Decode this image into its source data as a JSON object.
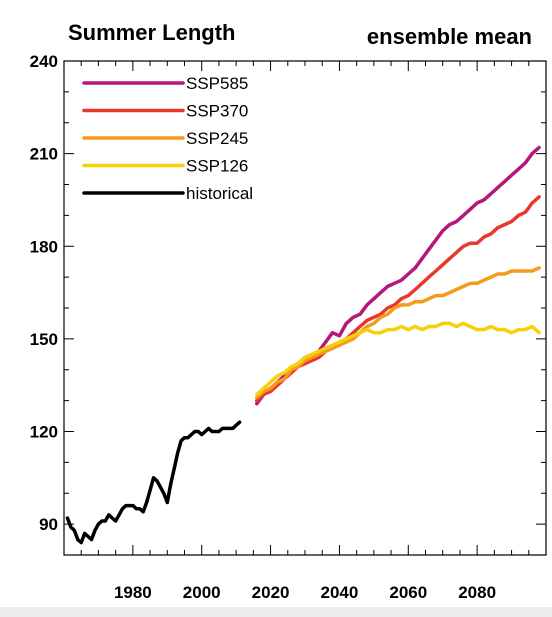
{
  "chart_data": {
    "type": "line",
    "title": "Summer Length",
    "subtitle": "ensemble mean",
    "xlabel": "",
    "ylabel": "",
    "xlim": [
      1960,
      2100
    ],
    "ylim": [
      80,
      240
    ],
    "x_ticks": [
      1980,
      2000,
      2020,
      2040,
      2060,
      2080
    ],
    "y_ticks": [
      90,
      120,
      150,
      180,
      210,
      240
    ],
    "grid": false,
    "legend_position": "top-left",
    "series": [
      {
        "name": "SSP585",
        "color": "#b5177a",
        "x": [
          2016,
          2018,
          2020,
          2022,
          2024,
          2026,
          2028,
          2030,
          2032,
          2034,
          2036,
          2038,
          2040,
          2042,
          2044,
          2046,
          2048,
          2050,
          2052,
          2054,
          2056,
          2058,
          2060,
          2062,
          2064,
          2066,
          2068,
          2070,
          2072,
          2074,
          2076,
          2078,
          2080,
          2082,
          2084,
          2086,
          2088,
          2090,
          2092,
          2094,
          2096,
          2098
        ],
        "y": [
          129,
          132,
          134,
          136,
          138,
          140,
          142,
          144,
          144,
          146,
          149,
          152,
          151,
          155,
          157,
          158,
          161,
          163,
          165,
          167,
          168,
          169,
          171,
          173,
          176,
          179,
          182,
          185,
          187,
          188,
          190,
          192,
          194,
          195,
          197,
          199,
          201,
          203,
          205,
          207,
          210,
          212
        ]
      },
      {
        "name": "SSP370",
        "color": "#e8382c",
        "x": [
          2016,
          2018,
          2020,
          2022,
          2024,
          2026,
          2028,
          2030,
          2032,
          2034,
          2036,
          2038,
          2040,
          2042,
          2044,
          2046,
          2048,
          2050,
          2052,
          2054,
          2056,
          2058,
          2060,
          2062,
          2064,
          2066,
          2068,
          2070,
          2072,
          2074,
          2076,
          2078,
          2080,
          2082,
          2084,
          2086,
          2088,
          2090,
          2092,
          2094,
          2096,
          2098
        ],
        "y": [
          130,
          132,
          133,
          135,
          137,
          139,
          141,
          142,
          143,
          144,
          146,
          147,
          148,
          150,
          152,
          154,
          156,
          157,
          158,
          160,
          161,
          163,
          164,
          166,
          168,
          170,
          172,
          174,
          176,
          178,
          180,
          181,
          181,
          183,
          184,
          186,
          187,
          188,
          190,
          191,
          194,
          196
        ]
      },
      {
        "name": "SSP245",
        "color": "#f49b1b",
        "x": [
          2016,
          2018,
          2020,
          2022,
          2024,
          2026,
          2028,
          2030,
          2032,
          2034,
          2036,
          2038,
          2040,
          2042,
          2044,
          2046,
          2048,
          2050,
          2052,
          2054,
          2056,
          2058,
          2060,
          2062,
          2064,
          2066,
          2068,
          2070,
          2072,
          2074,
          2076,
          2078,
          2080,
          2082,
          2084,
          2086,
          2088,
          2090,
          2092,
          2094,
          2096,
          2098
        ],
        "y": [
          131,
          133,
          134,
          136,
          137,
          140,
          141,
          143,
          144,
          145,
          146,
          147,
          148,
          149,
          150,
          152,
          154,
          155,
          157,
          158,
          160,
          161,
          161,
          162,
          162,
          163,
          164,
          164,
          165,
          166,
          167,
          168,
          168,
          169,
          170,
          171,
          171,
          172,
          172,
          172,
          172,
          173
        ]
      },
      {
        "name": "SSP126",
        "color": "#f5d00c",
        "x": [
          2016,
          2018,
          2020,
          2022,
          2024,
          2026,
          2028,
          2030,
          2032,
          2034,
          2036,
          2038,
          2040,
          2042,
          2044,
          2046,
          2048,
          2050,
          2052,
          2054,
          2056,
          2058,
          2060,
          2062,
          2064,
          2066,
          2068,
          2070,
          2072,
          2074,
          2076,
          2078,
          2080,
          2082,
          2084,
          2086,
          2088,
          2090,
          2092,
          2094,
          2096,
          2098
        ],
        "y": [
          132,
          134,
          136,
          138,
          139,
          141,
          142,
          144,
          145,
          146,
          147,
          148,
          149,
          150,
          151,
          152,
          153,
          152,
          152,
          153,
          153,
          154,
          153,
          154,
          153,
          154,
          154,
          155,
          155,
          154,
          155,
          154,
          153,
          153,
          154,
          153,
          153,
          152,
          153,
          153,
          154,
          152
        ]
      },
      {
        "name": "historical",
        "color": "#000000",
        "x": [
          1961,
          1962,
          1963,
          1964,
          1965,
          1966,
          1967,
          1968,
          1969,
          1970,
          1971,
          1972,
          1973,
          1974,
          1975,
          1976,
          1977,
          1978,
          1979,
          1980,
          1981,
          1982,
          1983,
          1984,
          1985,
          1986,
          1987,
          1988,
          1989,
          1990,
          1991,
          1992,
          1993,
          1994,
          1995,
          1996,
          1997,
          1998,
          1999,
          2000,
          2001,
          2002,
          2003,
          2004,
          2005,
          2006,
          2007,
          2008,
          2009,
          2010,
          2011
        ],
        "y": [
          92,
          89,
          88,
          85,
          84,
          87,
          86,
          85,
          88,
          90,
          91,
          91,
          93,
          92,
          91,
          93,
          95,
          96,
          96,
          96,
          95,
          95,
          94,
          97,
          101,
          105,
          104,
          102,
          100,
          97,
          103,
          108,
          113,
          117,
          118,
          118,
          119,
          120,
          120,
          119,
          120,
          121,
          120,
          120,
          120,
          121,
          121,
          121,
          121,
          122,
          123
        ]
      }
    ]
  }
}
